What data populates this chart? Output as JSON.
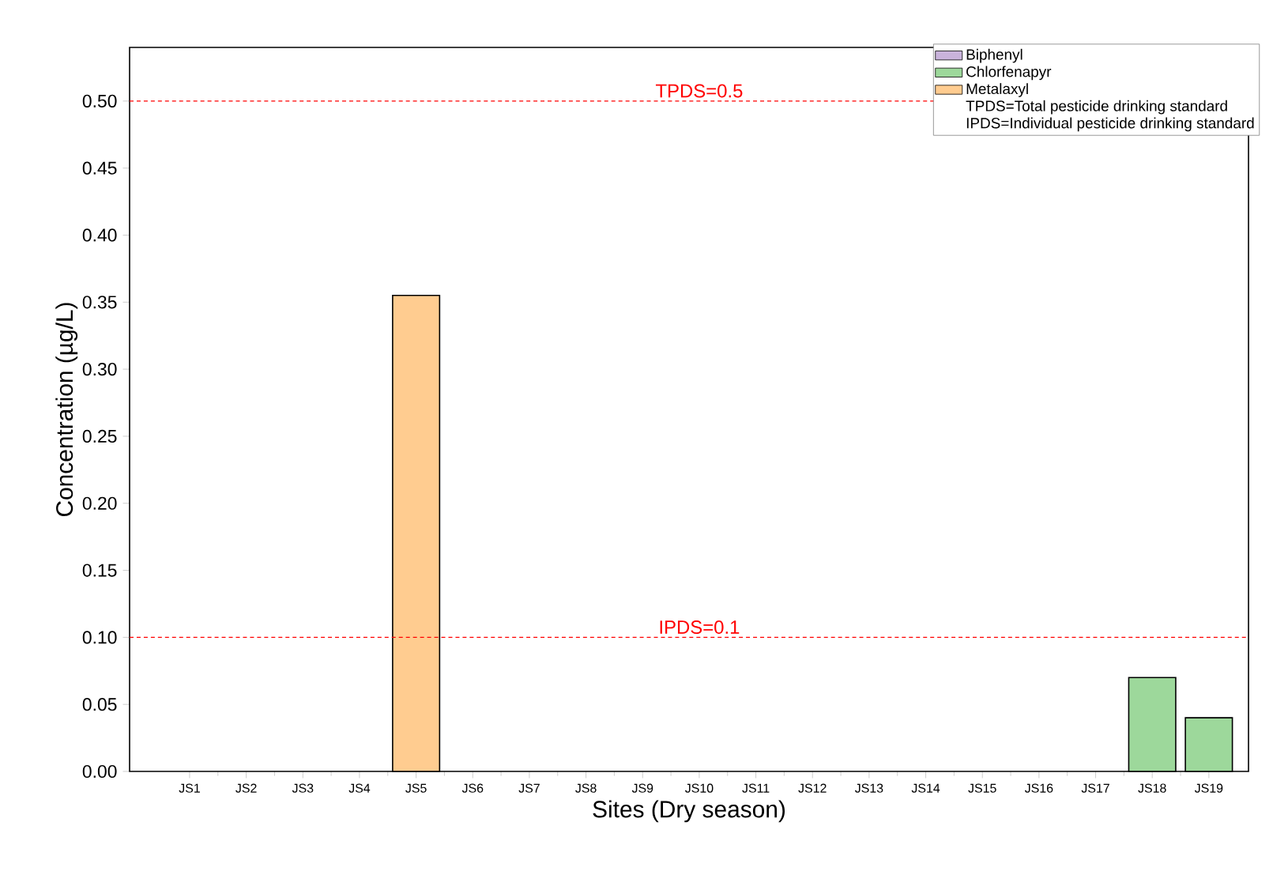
{
  "chart_data": {
    "type": "bar",
    "xlabel": "Sites (Dry season)",
    "ylabel": "Concentration (µg/L)",
    "categories": [
      "JS1",
      "JS2",
      "JS3",
      "JS4",
      "JS5",
      "JS6",
      "JS7",
      "JS8",
      "JS9",
      "JS10",
      "JS11",
      "JS12",
      "JS13",
      "JS14",
      "JS15",
      "JS16",
      "JS17",
      "JS18",
      "JS19"
    ],
    "series": [
      {
        "name": "Biphenyl",
        "color": "#c9b3db",
        "values": [
          null,
          null,
          null,
          null,
          null,
          null,
          null,
          null,
          null,
          null,
          null,
          null,
          null,
          null,
          null,
          null,
          null,
          null,
          null
        ]
      },
      {
        "name": "Chlorfenapyr",
        "color": "#9dd89b",
        "values": [
          null,
          null,
          null,
          null,
          null,
          null,
          null,
          null,
          null,
          null,
          null,
          null,
          null,
          null,
          null,
          null,
          null,
          0.07,
          0.04
        ]
      },
      {
        "name": "Metalaxyl",
        "color": "#ffcc90",
        "values": [
          null,
          null,
          null,
          null,
          0.355,
          null,
          null,
          null,
          null,
          null,
          null,
          null,
          null,
          null,
          null,
          null,
          null,
          null,
          null
        ]
      }
    ],
    "ylim": [
      0,
      0.54
    ],
    "yticks": [
      {
        "value": 0,
        "label": "0.00"
      },
      {
        "value": 0.05,
        "label": "0.05"
      },
      {
        "value": 0.1,
        "label": "0.10"
      },
      {
        "value": 0.15,
        "label": "0.15"
      },
      {
        "value": 0.2,
        "label": "0.20"
      },
      {
        "value": 0.25,
        "label": "0.25"
      },
      {
        "value": 0.3,
        "label": "0.30"
      },
      {
        "value": 0.35,
        "label": "0.35"
      },
      {
        "value": 0.4,
        "label": "0.40"
      },
      {
        "value": 0.45,
        "label": "0.45"
      },
      {
        "value": 0.5,
        "label": "0.50"
      }
    ],
    "ref_lines": [
      {
        "axis": "y",
        "value": 0.5,
        "label": "TPDS=0.5",
        "color": "#ff0000",
        "line_style": "dashed"
      },
      {
        "axis": "y",
        "value": 0.1,
        "label": "IPDS=0.1",
        "color": "#ff0000",
        "line_style": "dashed"
      }
    ],
    "annotations": [
      "TPDS=Total pesticide drinking standard",
      "IPDS=Individual pesticide drinking standard"
    ],
    "legend": "top right",
    "grid": false
  }
}
